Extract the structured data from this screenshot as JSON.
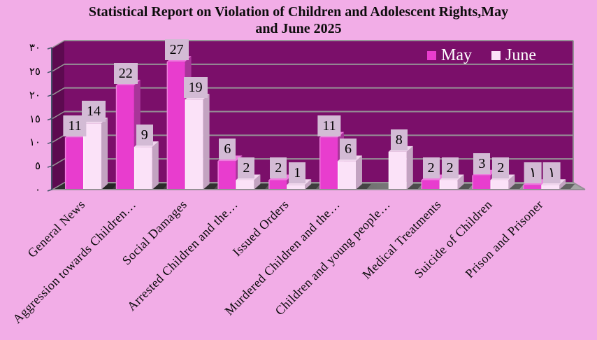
{
  "title": {
    "line1": "Statistical Report on Violation of Children and Adolescent Rights,May",
    "line2": "and June 2025"
  },
  "chart_data": {
    "type": "bar",
    "title": "Statistical Report on Violation of Children and Adolescent Rights,May and June 2025",
    "categories": [
      "General News",
      "Aggression towards Children…",
      "Social Damages",
      "Arrested Children and the…",
      "Issued Orders",
      "Murdered Children and the…",
      "Children and young people…",
      "Medical Treatments",
      "Suicide of Children",
      "Prison and Prisoner"
    ],
    "series": [
      {
        "name": "May",
        "color": "#E83DCE",
        "values": [
          11,
          22,
          27,
          6,
          2,
          11,
          0,
          2,
          3,
          1
        ],
        "labels": [
          "11",
          "22",
          "27",
          "6",
          "2",
          "11",
          "",
          "2",
          "3",
          "١"
        ]
      },
      {
        "name": "June",
        "color": "#FBE2F8",
        "values": [
          14,
          9,
          19,
          2,
          1,
          6,
          8,
          2,
          2,
          1
        ],
        "labels": [
          "14",
          "9",
          "19",
          "2",
          "1",
          "6",
          "8",
          "2",
          "2",
          "١"
        ]
      }
    ],
    "ylim": [
      0,
      30
    ],
    "y_tick_step": 5,
    "y_tick_labels": [
      "٠",
      "٥",
      "١٠",
      "١٥",
      "٢٠",
      "٢٥",
      "٣٠"
    ],
    "grid": true,
    "legend_position": "top-right",
    "style": {
      "background": "#F2ADE7",
      "wall": "#7B0F6A",
      "side_wall": "#5D0A50",
      "gridline": "#969096",
      "label_box": "#D3BBD5",
      "may_side": "#A83599",
      "may_top": "#EF7ADF",
      "june_side": "#C3A3C1",
      "june_top": "#F0D6ED"
    }
  }
}
